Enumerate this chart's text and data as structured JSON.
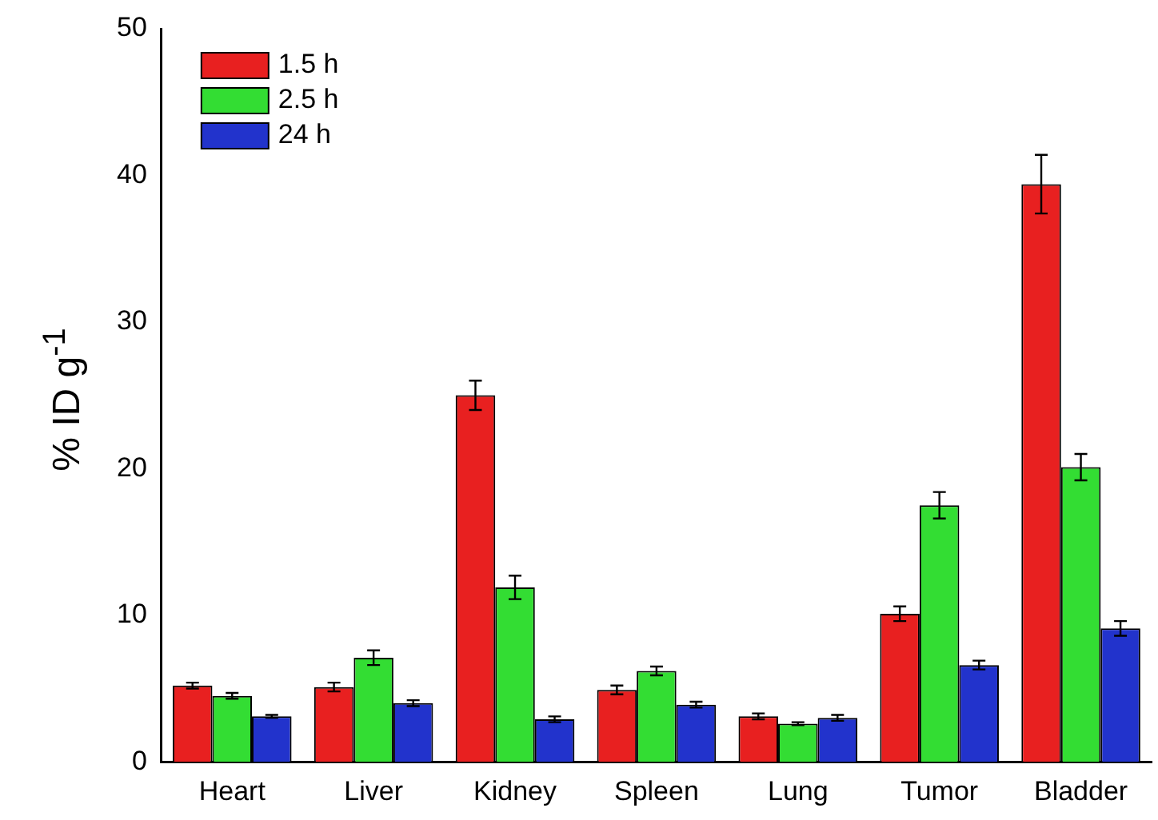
{
  "chart_data": {
    "type": "bar",
    "ylabel": "% ID g$^{-1}$",
    "categories": [
      "Heart",
      "Liver",
      "Kidney",
      "Spleen",
      "Lung",
      "Tumor",
      "Bladder"
    ],
    "series": [
      {
        "name": "1.5 h",
        "color": "#e82020",
        "values": [
          5.2,
          5.1,
          25.0,
          4.9,
          3.1,
          10.1,
          39.4
        ],
        "errors": [
          0.2,
          0.3,
          1.0,
          0.3,
          0.2,
          0.5,
          2.0
        ]
      },
      {
        "name": "2.5 h",
        "color": "#33dd33",
        "values": [
          4.5,
          7.1,
          11.9,
          6.2,
          2.6,
          17.5,
          20.1
        ],
        "errors": [
          0.2,
          0.5,
          0.8,
          0.3,
          0.1,
          0.9,
          0.9
        ]
      },
      {
        "name": "24 h",
        "color": "#2233cc",
        "values": [
          3.1,
          4.0,
          2.9,
          3.9,
          3.0,
          6.6,
          9.1
        ],
        "errors": [
          0.1,
          0.2,
          0.2,
          0.2,
          0.2,
          0.3,
          0.5
        ]
      }
    ],
    "ylim": [
      0,
      50
    ],
    "yticks": [
      0,
      10,
      20,
      30,
      40,
      50
    ],
    "grid": false,
    "legend": "top left"
  }
}
